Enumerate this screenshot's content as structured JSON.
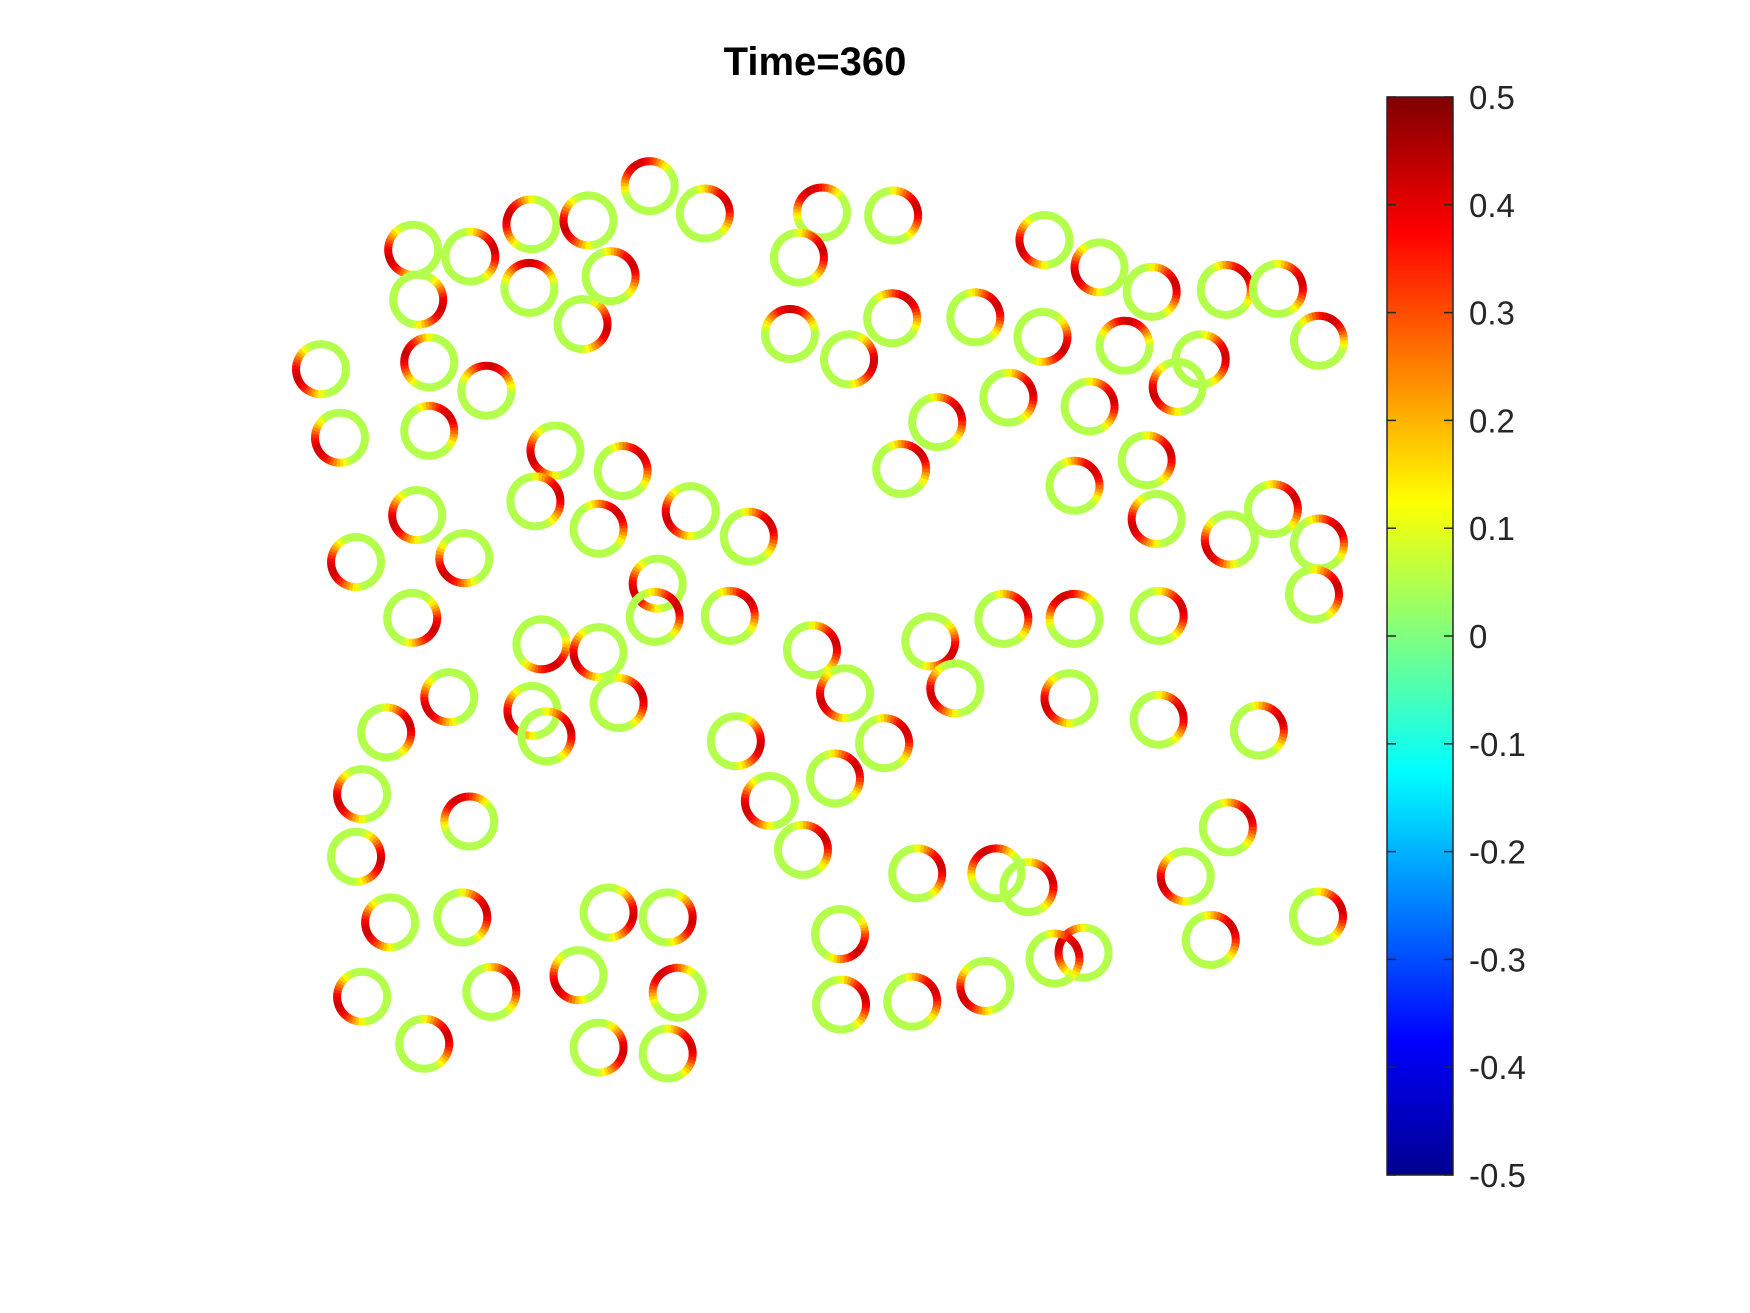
{
  "chart_data": {
    "type": "scatter",
    "title": "Time=360",
    "xlabel": "",
    "ylabel": "",
    "axes_visible": false,
    "marker": "ring colored by local value",
    "colormap": "jet",
    "colorbar": {
      "location": "right",
      "limits": [
        -0.5,
        0.5
      ],
      "ticks": [
        0.5,
        0.4,
        0.3,
        0.2,
        0.1,
        0,
        -0.1,
        -0.2,
        -0.3,
        -0.4,
        -0.5
      ],
      "tick_labels": [
        "0.5",
        "0.4",
        "0.3",
        "0.2",
        "0.1",
        "0",
        "-0.1",
        "-0.2",
        "-0.3",
        "-0.4",
        "-0.5"
      ],
      "colors": [
        "#00008f",
        "#0000ff",
        "#0080ff",
        "#00ffff",
        "#80ff80",
        "#ffff00",
        "#ff8000",
        "#ff0000",
        "#800000"
      ]
    },
    "ring_value_range": [
      0.05,
      0.42
    ],
    "xlim": [
      0,
      100
    ],
    "ylim": [
      0,
      100
    ],
    "points": [
      [
        9.0,
        89.3,
        200
      ],
      [
        14.7,
        88.6,
        20
      ],
      [
        20.8,
        91.9,
        160
      ],
      [
        26.5,
        92.3,
        200
      ],
      [
        32.6,
        95.8,
        120
      ],
      [
        38.1,
        93.0,
        30
      ],
      [
        49.8,
        93.1,
        120
      ],
      [
        56.9,
        92.8,
        20
      ],
      [
        72.0,
        90.3,
        200
      ],
      [
        77.5,
        87.5,
        200
      ],
      [
        9.5,
        84.2,
        340
      ],
      [
        20.6,
        85.4,
        90
      ],
      [
        25.9,
        81.7,
        350
      ],
      [
        28.7,
        86.6,
        30
      ],
      [
        47.5,
        88.5,
        20
      ],
      [
        46.6,
        80.7,
        90
      ],
      [
        52.5,
        78.1,
        350
      ],
      [
        56.8,
        82.3,
        50
      ],
      [
        65.1,
        82.4,
        30
      ],
      [
        71.8,
        80.4,
        330
      ],
      [
        82.7,
        85.0,
        20
      ],
      [
        90.1,
        85.2,
        40
      ],
      [
        95.3,
        85.3,
        20
      ],
      [
        80.0,
        79.5,
        80
      ],
      [
        87.6,
        78.1,
        10
      ],
      [
        99.4,
        80.0,
        60
      ],
      [
        -0.2,
        77.1,
        200
      ],
      [
        10.6,
        77.8,
        160
      ],
      [
        16.3,
        74.9,
        80
      ],
      [
        61.3,
        71.7,
        30
      ],
      [
        68.4,
        74.2,
        20
      ],
      [
        76.5,
        73.3,
        20
      ],
      [
        85.3,
        75.3,
        200
      ],
      [
        1.7,
        70.1,
        210
      ],
      [
        10.6,
        70.8,
        40
      ],
      [
        23.2,
        68.8,
        200
      ],
      [
        29.9,
        66.7,
        40
      ],
      [
        57.7,
        66.9,
        40
      ],
      [
        82.2,
        67.8,
        20
      ],
      [
        9.4,
        62.2,
        200
      ],
      [
        21.2,
        63.6,
        20
      ],
      [
        27.5,
        60.8,
        40
      ],
      [
        36.7,
        62.6,
        200
      ],
      [
        42.5,
        60.0,
        30
      ],
      [
        75.0,
        65.2,
        40
      ],
      [
        83.2,
        61.8,
        200
      ],
      [
        94.8,
        62.8,
        30
      ],
      [
        90.5,
        59.7,
        210
      ],
      [
        99.4,
        59.3,
        40
      ],
      [
        3.3,
        57.4,
        200
      ],
      [
        14.1,
        57.8,
        220
      ],
      [
        33.4,
        55.2,
        200
      ],
      [
        40.6,
        51.9,
        40
      ],
      [
        8.9,
        51.7,
        330
      ],
      [
        98.9,
        54.1,
        20
      ],
      [
        75.0,
        51.6,
        120
      ],
      [
        83.4,
        51.9,
        20
      ],
      [
        48.8,
        48.4,
        20
      ],
      [
        60.6,
        49.3,
        330
      ],
      [
        67.9,
        51.6,
        30
      ],
      [
        21.8,
        49.0,
        300
      ],
      [
        27.5,
        48.2,
        200
      ],
      [
        33.1,
        51.8,
        30
      ],
      [
        12.6,
        43.6,
        210
      ],
      [
        20.9,
        42.2,
        200
      ],
      [
        29.5,
        43.0,
        20
      ],
      [
        52.1,
        44.0,
        200
      ],
      [
        63.1,
        44.5,
        200
      ],
      [
        74.5,
        43.5,
        200
      ],
      [
        83.4,
        41.3,
        20
      ],
      [
        93.4,
        40.2,
        30
      ],
      [
        6.3,
        40.0,
        20
      ],
      [
        22.3,
        39.6,
        20
      ],
      [
        41.2,
        39.1,
        350
      ],
      [
        56.0,
        38.9,
        30
      ],
      [
        3.9,
        33.7,
        200
      ],
      [
        14.6,
        30.9,
        120
      ],
      [
        44.6,
        33.0,
        200
      ],
      [
        51.1,
        35.3,
        30
      ],
      [
        3.3,
        27.3,
        350
      ],
      [
        47.9,
        28.0,
        30
      ],
      [
        90.3,
        30.3,
        30
      ],
      [
        86.1,
        25.3,
        200
      ],
      [
        59.3,
        25.6,
        20
      ],
      [
        67.2,
        25.6,
        120
      ],
      [
        70.4,
        24.2,
        20
      ],
      [
        51.6,
        19.4,
        320
      ],
      [
        99.3,
        21.2,
        20
      ],
      [
        6.7,
        20.6,
        200
      ],
      [
        13.9,
        21.1,
        20
      ],
      [
        28.5,
        21.6,
        350
      ],
      [
        34.4,
        21.1,
        350
      ],
      [
        75.9,
        17.5,
        160
      ],
      [
        88.6,
        18.8,
        30
      ],
      [
        25.5,
        15.2,
        210
      ],
      [
        35.4,
        13.4,
        130
      ],
      [
        66.1,
        14.1,
        210
      ],
      [
        73.0,
        16.9,
        30
      ],
      [
        3.9,
        13.0,
        200
      ],
      [
        16.8,
        13.5,
        30
      ],
      [
        51.7,
        12.2,
        20
      ],
      [
        58.8,
        12.5,
        30
      ],
      [
        10.1,
        8.2,
        20
      ],
      [
        27.5,
        7.8,
        350
      ],
      [
        34.4,
        7.2,
        20
      ]
    ]
  }
}
